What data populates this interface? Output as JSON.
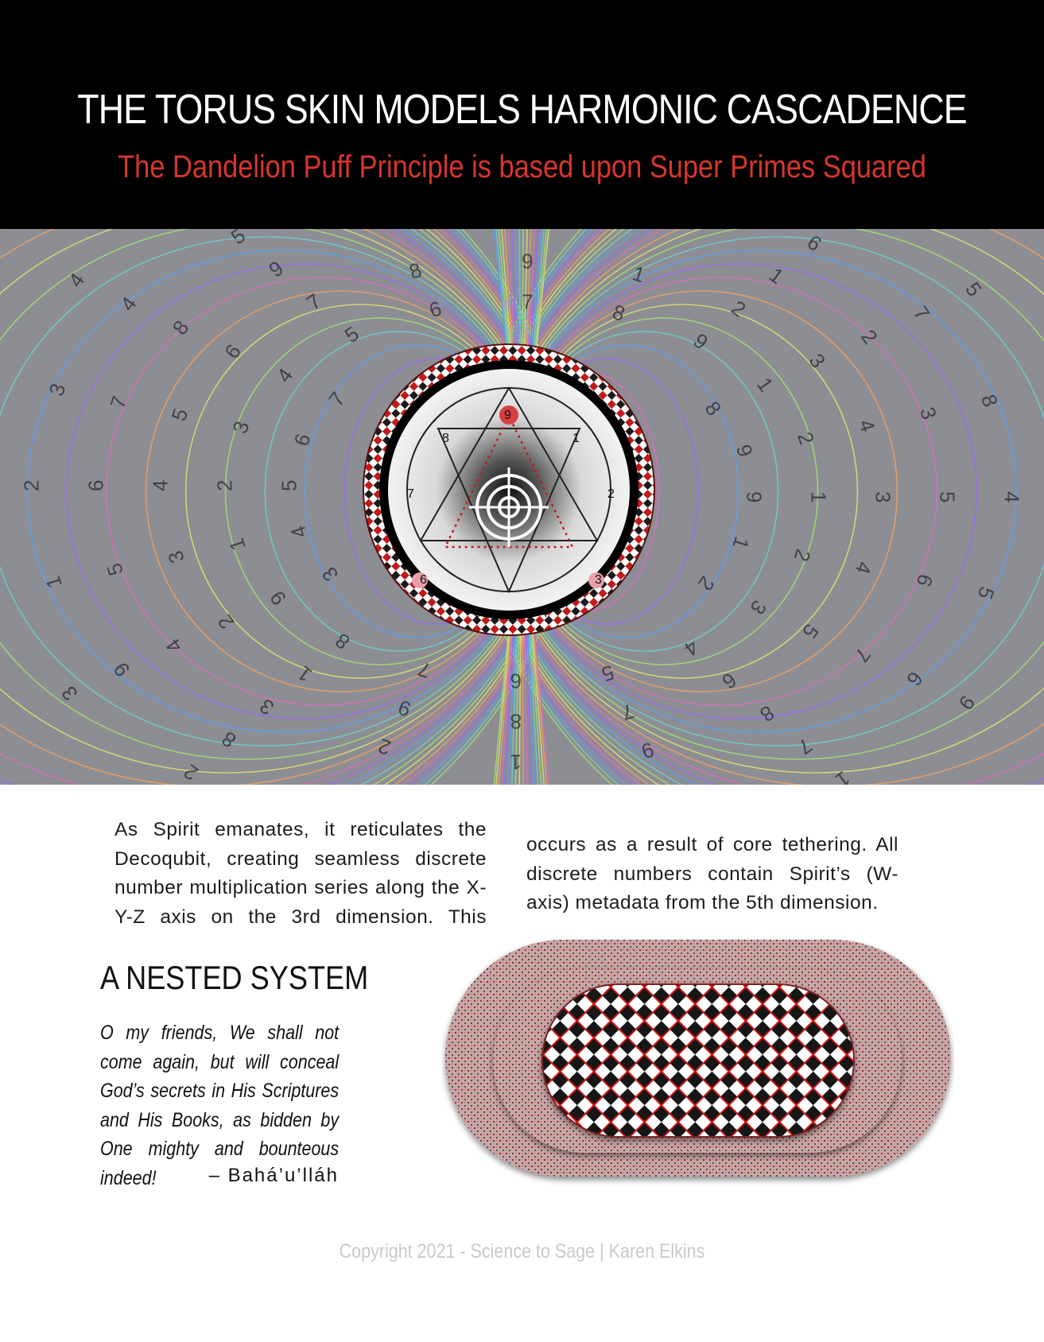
{
  "header": {
    "title": "THE TORUS SKIN MODELS HARMONIC CASCADENCE",
    "subtitle": "The Dandelion Puff Principle is based upon Super Primes Squared"
  },
  "torus_figure": {
    "background_color": "#8d8d94",
    "ring_colors": [
      "#d86fbd",
      "#9a6cf0",
      "#5aa0f0",
      "#6ad0c8",
      "#a0e070",
      "#e0e070",
      "#f0a060"
    ],
    "vortex_labels": [
      "9",
      "1",
      "2",
      "3",
      "4",
      "5",
      "6",
      "7",
      "8"
    ],
    "icon": "torus-with-vortex-mandala"
  },
  "body": {
    "column1": "As Spirit emanates, it reticulates the Decoqubit, creating seamless discrete number multiplication series along the X-Y-Z axis on the 3rd dimension. This",
    "column2": "occurs as a result of core tethering.  All discrete numbers contain Spirit’s (W-axis) metadata from the 5th dimension."
  },
  "nested": {
    "heading": "A NESTED SYSTEM",
    "quote": "O my friends, We shall not come again, but will conceal God’s secrets in His Scriptures and His Books, as bidden by One mighty and bounteous indeed!",
    "attribution": "– Bahá’u’lláh"
  },
  "capsule_figure": {
    "icon": "nested-capsule-checkerboard",
    "colors": {
      "outer": "#c49b9b",
      "accent": "#d01818",
      "dark": "#151515"
    }
  },
  "footer": {
    "copyright": "Copyright 2021 - Science to Sage | Karen Elkins"
  }
}
